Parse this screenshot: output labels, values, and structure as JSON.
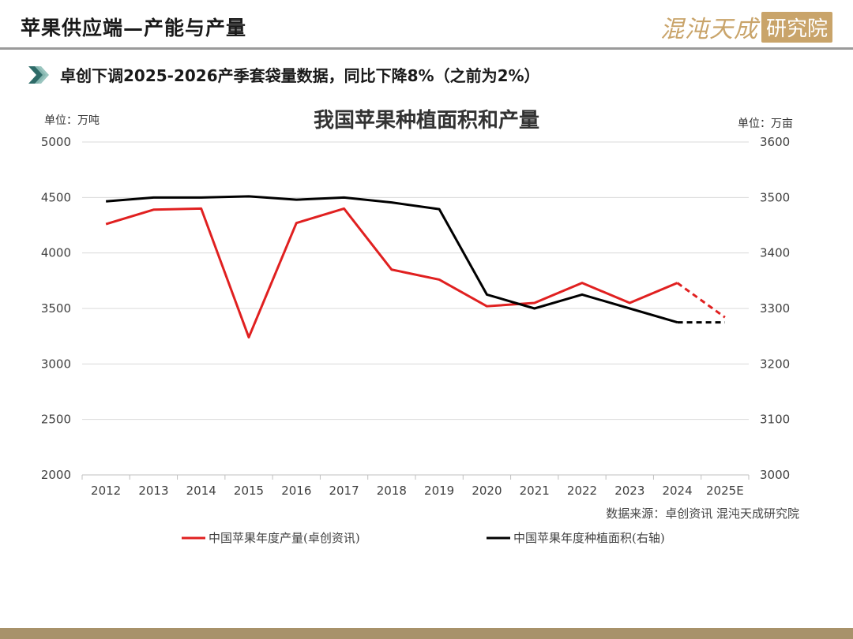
{
  "header": {
    "title": "苹果供应端—产能与产量",
    "logo_text": "混沌天成",
    "logo_box": "研究院"
  },
  "subtitle": "卓创下调2025-2026产季套袋量数据，同比下降8%（之前为2%）",
  "colors": {
    "production": "#e02020",
    "area": "#000000",
    "grid": "#d9d9d9",
    "logo": "#c9a46a",
    "bottom_bar": "#a8926a"
  },
  "chart_data": {
    "type": "line",
    "title": "我国苹果种植面积和产量",
    "left_unit_label": "单位：万吨",
    "right_unit_label": "单位：万亩",
    "categories": [
      "2012",
      "2013",
      "2014",
      "2015",
      "2016",
      "2017",
      "2018",
      "2019",
      "2020",
      "2021",
      "2022",
      "2023",
      "2024",
      "2025E"
    ],
    "y_left": {
      "min": 2000,
      "max": 5000,
      "ticks": [
        2000,
        2500,
        3000,
        3500,
        4000,
        4500,
        5000
      ]
    },
    "y_right": {
      "min": 3000,
      "max": 3600,
      "ticks": [
        3000,
        3100,
        3200,
        3300,
        3400,
        3500,
        3600
      ]
    },
    "grid": true,
    "legend_position": "bottom",
    "series": [
      {
        "name": "中国苹果年度产量(卓创资讯)",
        "axis": "left",
        "values": [
          4260,
          4390,
          4400,
          3240,
          4270,
          4400,
          3850,
          3760,
          3520,
          3550,
          3730,
          3550,
          3730,
          3420
        ],
        "dashed_from_index": 12
      },
      {
        "name": "中国苹果年度种植面积(右轴)",
        "axis": "right",
        "values": [
          3493,
          3500,
          3500,
          3502,
          3496,
          3500,
          3491,
          3479,
          3325,
          3300,
          3325,
          3300,
          3275,
          3275
        ],
        "dashed_from_index": 12
      }
    ],
    "source": "数据来源：卓创资讯  混沌天成研究院"
  }
}
